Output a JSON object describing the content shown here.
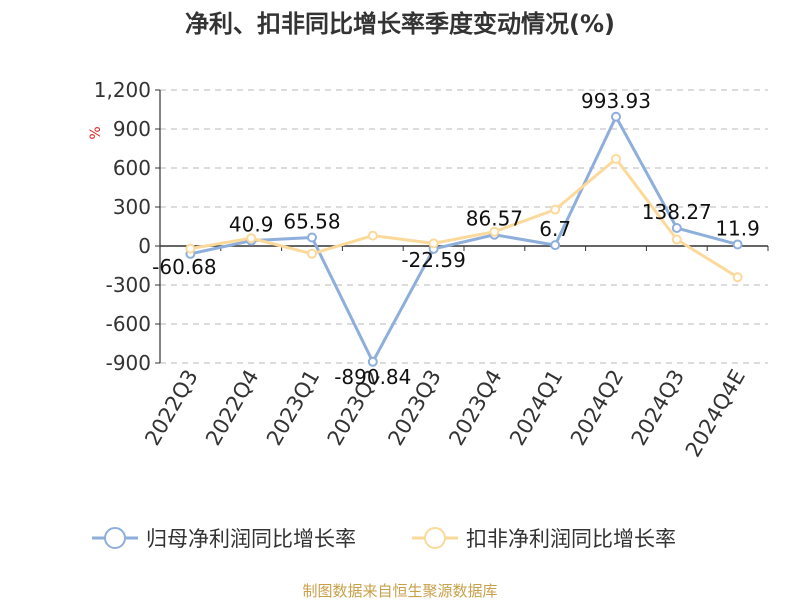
{
  "chart_data": {
    "type": "line",
    "title": "净利、扣非同比增长率季度变动情况(%)",
    "y_unit": "%",
    "categories": [
      "2022Q3",
      "2022Q4",
      "2023Q1",
      "2023Q2",
      "2023Q3",
      "2023Q4",
      "2024Q1",
      "2024Q2",
      "2024Q3",
      "2024Q4E"
    ],
    "yticks": [
      "1,200",
      "900",
      "600",
      "300",
      "0",
      "-300",
      "-600",
      "-900"
    ],
    "ylim": [
      -900,
      1200
    ],
    "grid": true,
    "legend_position": "bottom",
    "series": [
      {
        "name": "归母净利润同比增长率",
        "color": "#8eaedb",
        "values": [
          -60.68,
          40.9,
          65.58,
          -890.84,
          -22.59,
          86.57,
          6.7,
          993.93,
          138.27,
          11.9
        ],
        "labels": [
          "-60.68",
          "40.9",
          "65.58",
          "-890.84",
          "-22.59",
          "86.57",
          "6.7",
          "993.93",
          "138.27",
          "11.9"
        ]
      },
      {
        "name": "扣非净利润同比增长率",
        "color": "#fbd99a",
        "values": [
          -20,
          60,
          -60,
          80,
          20,
          110,
          280,
          670,
          50,
          -240
        ]
      }
    ],
    "source": "制图数据来自恒生聚源数据库"
  }
}
